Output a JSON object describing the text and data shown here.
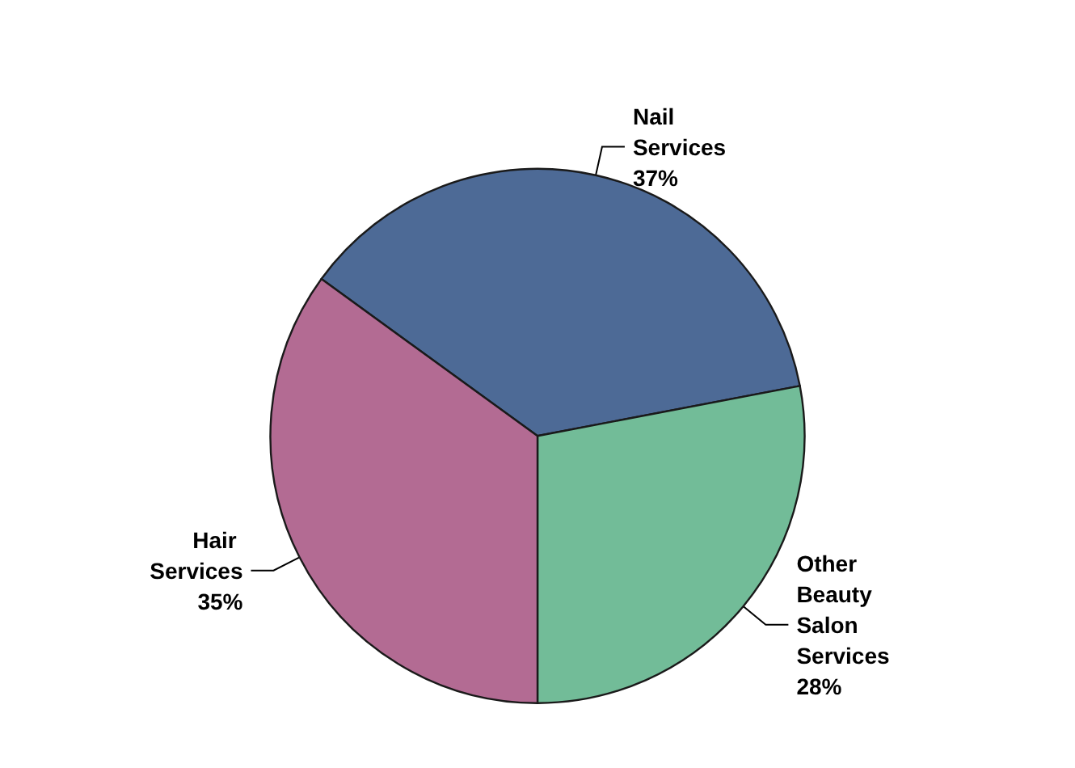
{
  "chart_data": {
    "type": "pie",
    "categories": [
      "Nail Services",
      "Other Beauty Salon Services",
      "Hair Services"
    ],
    "values": [
      37,
      28,
      35
    ],
    "value_labels": [
      "37%",
      "28%",
      "35%"
    ],
    "colors": [
      "#4d6a96",
      "#72bc98",
      "#b36b93"
    ],
    "legend": false
  }
}
